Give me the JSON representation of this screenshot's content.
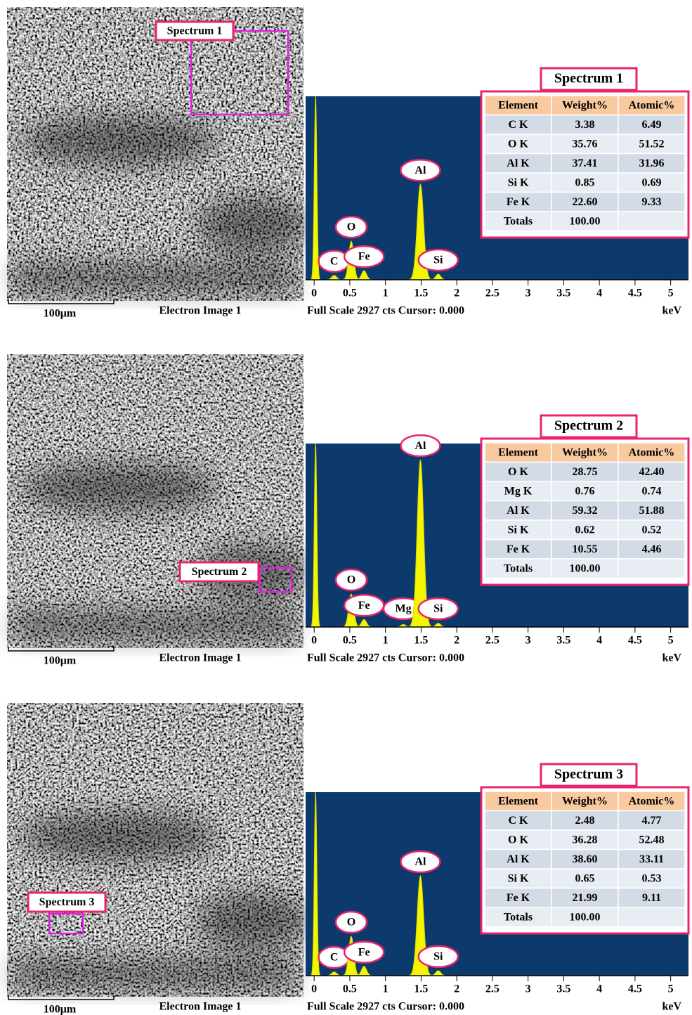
{
  "panels": [
    {
      "scale_bar": "100μm",
      "image_caption": "Electron Image 1",
      "spectrum": {
        "title": "Spectrum 1",
        "footer": "Full Scale 2927 cts Cursor: 0.000",
        "x_unit": "keV",
        "xlim": [
          -0.12,
          5.25
        ],
        "xticks": [
          0,
          0.5,
          1,
          1.5,
          2,
          2.5,
          3,
          3.5,
          4,
          4.5,
          5
        ],
        "ylim": [
          0,
          2927
        ],
        "zero_peak": {
          "x": 0.02,
          "counts": 2927
        },
        "peaks": [
          {
            "label": "C",
            "x": 0.28,
            "counts": 70
          },
          {
            "label": "O",
            "x": 0.52,
            "counts": 616
          },
          {
            "label": "Fe",
            "x": 0.7,
            "counts": 145
          },
          {
            "label": "Al",
            "x": 1.49,
            "counts": 1523
          },
          {
            "label": "Si",
            "x": 1.74,
            "counts": 90
          }
        ]
      },
      "table": {
        "columns": [
          "Element",
          "Weight%",
          "Atomic%"
        ],
        "rows": [
          [
            "C K",
            "3.38",
            "6.49"
          ],
          [
            "O K",
            "35.76",
            "51.52"
          ],
          [
            "Al K",
            "37.41",
            "31.96"
          ],
          [
            "Si K",
            "0.85",
            "0.69"
          ],
          [
            "Fe K",
            "22.60",
            "9.33"
          ],
          [
            "Totals",
            "100.00"
          ]
        ]
      }
    },
    {
      "scale_bar": "100μm",
      "image_caption": "Electron Image 1",
      "spectrum": {
        "title": "Spectrum 2",
        "footer": "Full Scale 2927 cts Cursor: 0.000",
        "x_unit": "keV",
        "xlim": [
          -0.12,
          5.25
        ],
        "xticks": [
          0,
          0.5,
          1,
          1.5,
          2,
          2.5,
          3,
          3.5,
          4,
          4.5,
          5
        ],
        "ylim": [
          0,
          2927
        ],
        "zero_peak": {
          "x": 0.02,
          "counts": 2927
        },
        "peaks": [
          {
            "label": "O",
            "x": 0.52,
            "counts": 527
          },
          {
            "label": "Fe",
            "x": 0.7,
            "counts": 120
          },
          {
            "label": "Mg",
            "x": 1.25,
            "counts": 40
          },
          {
            "label": "Al",
            "x": 1.49,
            "counts": 2668
          },
          {
            "label": "Si",
            "x": 1.74,
            "counts": 60
          }
        ]
      },
      "table": {
        "columns": [
          "Element",
          "Weight%",
          "Atomic%"
        ],
        "rows": [
          [
            "O K",
            "28.75",
            "42.40"
          ],
          [
            "Mg K",
            "0.76",
            "0.74"
          ],
          [
            "Al K",
            "59.32",
            "51.88"
          ],
          [
            "Si K",
            "0.62",
            "0.52"
          ],
          [
            "Fe K",
            "10.55",
            "4.46"
          ],
          [
            "Totals",
            "100.00"
          ]
        ]
      }
    },
    {
      "scale_bar": "100μm",
      "image_caption": "Electron Image 1",
      "spectrum": {
        "title": "Spectrum 3",
        "footer": "Full Scale 2927 cts Cursor: 0.000",
        "x_unit": "keV",
        "xlim": [
          -0.12,
          5.25
        ],
        "xticks": [
          0,
          0.5,
          1,
          1.5,
          2,
          2.5,
          3,
          3.5,
          4,
          4.5,
          5
        ],
        "ylim": [
          0,
          2927
        ],
        "zero_peak": {
          "x": 0.02,
          "counts": 2927
        },
        "peaks": [
          {
            "label": "C",
            "x": 0.28,
            "counts": 60
          },
          {
            "label": "O",
            "x": 0.52,
            "counts": 628
          },
          {
            "label": "Fe",
            "x": 0.7,
            "counts": 150
          },
          {
            "label": "Al",
            "x": 1.49,
            "counts": 1592
          },
          {
            "label": "Si",
            "x": 1.74,
            "counts": 80
          }
        ]
      },
      "table": {
        "columns": [
          "Element",
          "Weight%",
          "Atomic%"
        ],
        "rows": [
          [
            "C K",
            "2.48",
            "4.77"
          ],
          [
            "O K",
            "36.28",
            "52.48"
          ],
          [
            "Al K",
            "38.60",
            "33.11"
          ],
          [
            "Si K",
            "0.65",
            "0.53"
          ],
          [
            "Fe K",
            "21.99",
            "9.11"
          ],
          [
            "Totals",
            "100.00"
          ]
        ]
      }
    }
  ]
}
